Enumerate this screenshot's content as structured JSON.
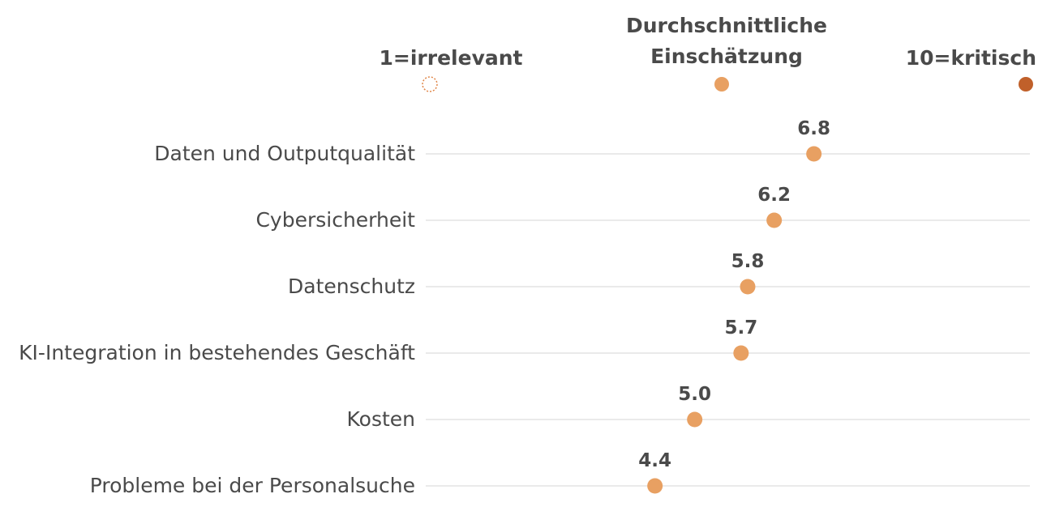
{
  "chart_data": {
    "type": "scatter",
    "orientation": "horizontal-dot-plot",
    "xlim": [
      1,
      10
    ],
    "legend": {
      "placement": "top",
      "min_label": "1=irrelevant",
      "avg_label_line1": "Durchschnittliche",
      "avg_label_line2": "Einschätzung",
      "max_label": "10=kritisch"
    },
    "categories": [
      "Daten und Outputqualität",
      "Cybersicherheit",
      "Datenschutz",
      "KI-Integration in bestehendes Geschäft",
      "Kosten",
      "Probleme bei der Personalsuche"
    ],
    "values": [
      6.8,
      6.2,
      5.8,
      5.7,
      5.0,
      4.4
    ],
    "value_labels": [
      "6.8",
      "6.2",
      "5.8",
      "5.7",
      "5.0",
      "4.4"
    ],
    "colors": {
      "dot": "#e8a062",
      "min_marker_stroke": "#e0874a",
      "max_marker": "#c0602a",
      "text": "#4a4a4a",
      "gridline": "#d4d4d4"
    }
  }
}
